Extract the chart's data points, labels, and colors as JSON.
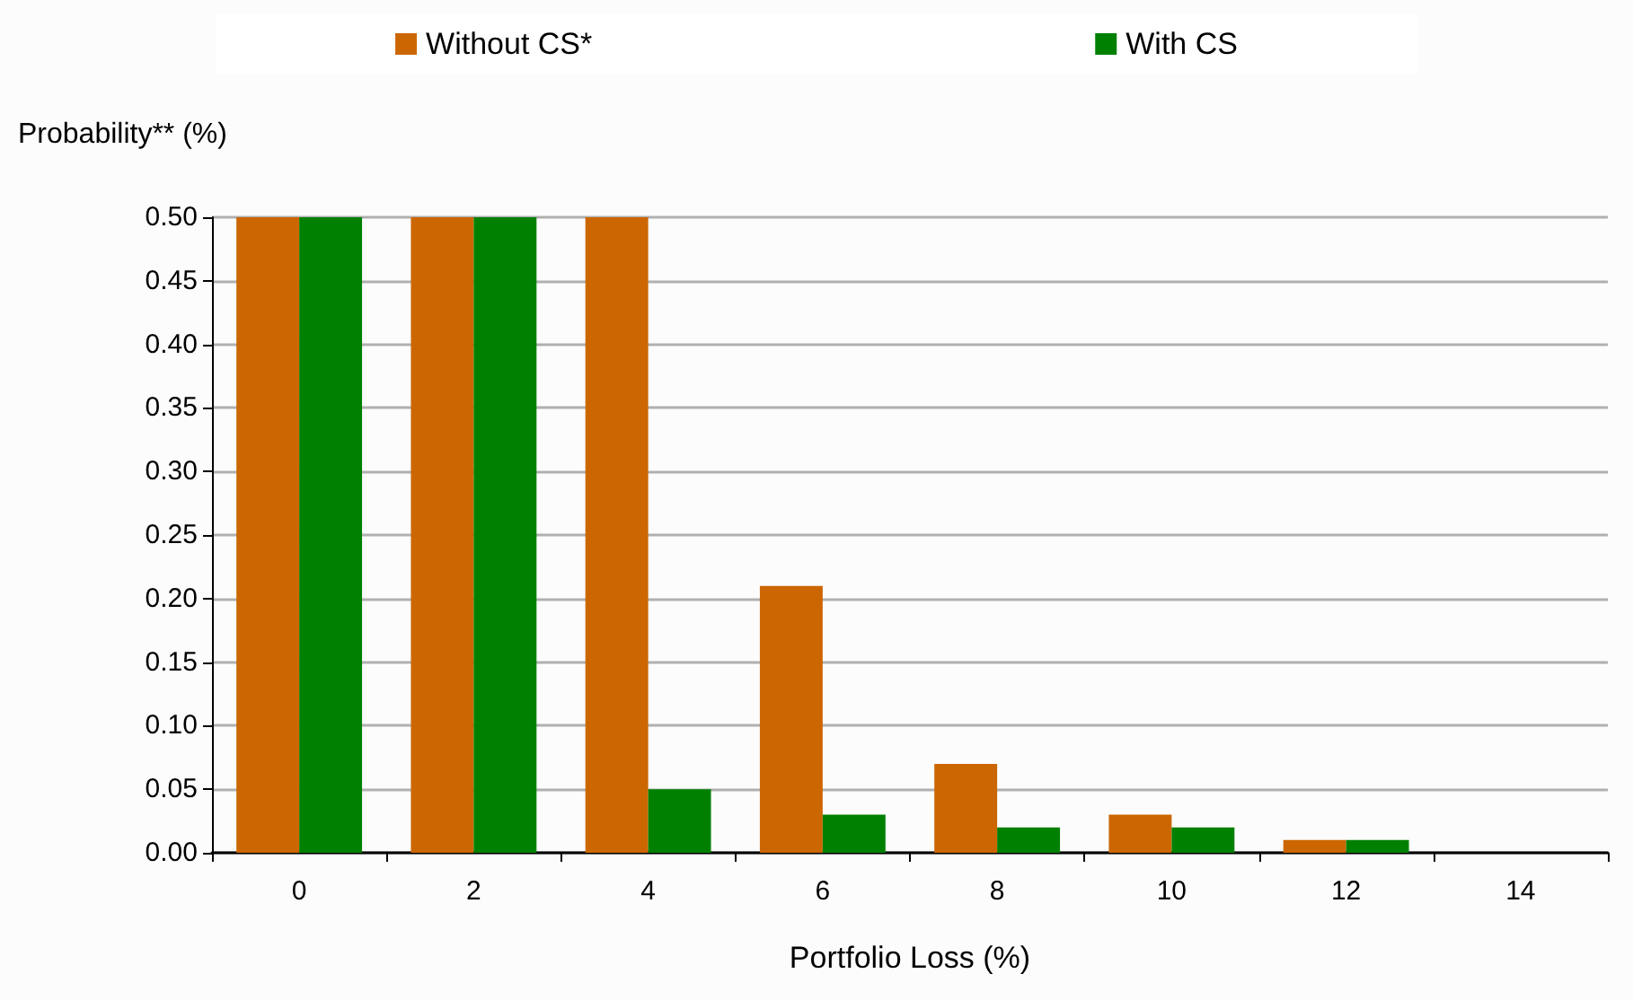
{
  "chart_data": {
    "type": "bar",
    "xlabel": "Portfolio Loss (%)",
    "ylabel": "Probability** (%)",
    "categories": [
      "0",
      "2",
      "4",
      "6",
      "8",
      "10",
      "12",
      "14"
    ],
    "series": [
      {
        "name": "Without CS*",
        "color": "#cc6600",
        "values": [
          0.5,
          0.5,
          0.5,
          0.21,
          0.07,
          0.03,
          0.01,
          0
        ]
      },
      {
        "name": "With CS",
        "color": "#008000",
        "values": [
          0.5,
          0.5,
          0.05,
          0.03,
          0.02,
          0.02,
          0.01,
          0
        ]
      }
    ],
    "ylim": [
      0,
      0.5
    ],
    "yticks": [
      {
        "value": 0,
        "label": "0.00"
      },
      {
        "value": 0.05,
        "label": "0.05"
      },
      {
        "value": 0.1,
        "label": "0.10"
      },
      {
        "value": 0.15,
        "label": "0.15"
      },
      {
        "value": 0.2,
        "label": "0.20"
      },
      {
        "value": 0.25,
        "label": "0.25"
      },
      {
        "value": 0.3,
        "label": "0.30"
      },
      {
        "value": 0.35,
        "label": "0.35"
      },
      {
        "value": 0.4,
        "label": "0.40"
      },
      {
        "value": 0.45,
        "label": "0.45"
      },
      {
        "value": 0.5,
        "label": "0.50"
      }
    ],
    "grid": "y",
    "legend": "top"
  }
}
